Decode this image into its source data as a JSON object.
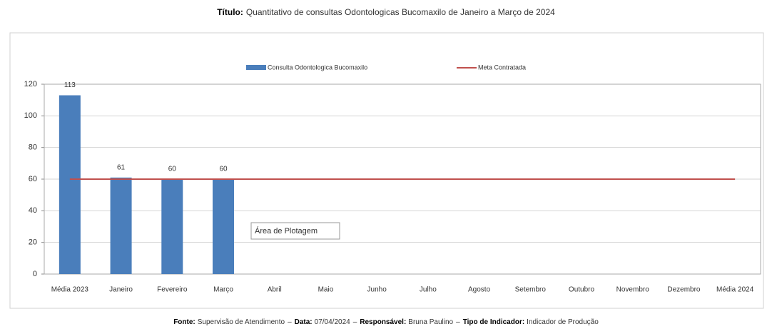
{
  "chart_data": {
    "type": "bar",
    "title_label": "Título:",
    "title": "Quantitativo de consultas Odontologicas Bucomaxilo de Janeiro a Março de 2024",
    "categories": [
      "Média 2023",
      "Janeiro",
      "Fevereiro",
      "Março",
      "Abril",
      "Maio",
      "Junho",
      "Julho",
      "Agosto",
      "Setembro",
      "Outubro",
      "Novembro",
      "Dezembro",
      "Média 2024"
    ],
    "series": [
      {
        "name": "Consulta Odontologica Bucomaxilo",
        "type": "bar",
        "color": "#4a7ebb",
        "values": [
          113,
          61,
          60,
          60,
          null,
          null,
          null,
          null,
          null,
          null,
          null,
          null,
          null,
          null
        ]
      },
      {
        "name": "Meta Contratada",
        "type": "line",
        "color": "#c0504d",
        "values": [
          60,
          60,
          60,
          60,
          60,
          60,
          60,
          60,
          60,
          60,
          60,
          60,
          60,
          60
        ]
      }
    ],
    "ylim": [
      0,
      120
    ],
    "yticks": [
      0,
      20,
      40,
      60,
      80,
      100,
      120
    ],
    "grid": true,
    "legend": "top",
    "annotation": "Área de Plotagem",
    "footer": {
      "separator": "–",
      "items": [
        {
          "label": "Fonte:",
          "value": "Supervisão de Atendimento"
        },
        {
          "label": "Data:",
          "value": "07/04/2024"
        },
        {
          "label": "Responsável:",
          "value": "Bruna Paulino"
        },
        {
          "label": "Tipo de Indicador:",
          "value": "Indicador de Produção"
        }
      ]
    }
  }
}
